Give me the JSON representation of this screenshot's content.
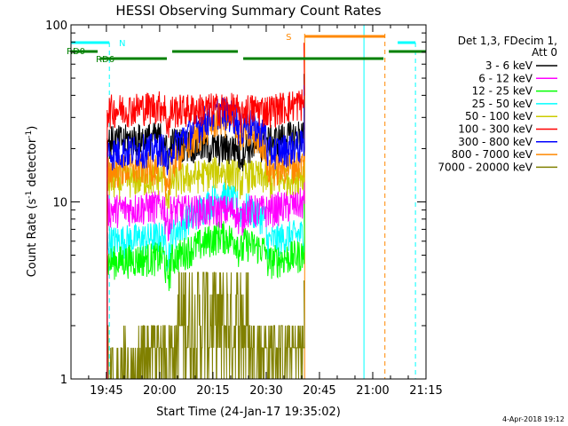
{
  "chart_data": {
    "type": "line",
    "title": "HESSI Observing Summary Count Rates",
    "xlabel": "Start Time (24-Jan-17 19:35:02)",
    "ylabel": "Count Rate (s",
    "ylabel_sup": "-1",
    "ylabel_mid": " detector",
    "ylabel_end": ")",
    "x_range": [
      "19:35:02",
      "21:15:00"
    ],
    "y_range": [
      1,
      100
    ],
    "y_scale": "log",
    "x_ticks": [
      {
        "label": "19:45",
        "min": 9.97
      },
      {
        "label": "20:00",
        "min": 24.97
      },
      {
        "label": "20:15",
        "min": 39.97
      },
      {
        "label": "20:30",
        "min": 54.97
      },
      {
        "label": "20:45",
        "min": 69.97
      },
      {
        "label": "21:00",
        "min": 84.97
      },
      {
        "label": "21:15",
        "min": 99.97
      }
    ],
    "y_ticks": [
      {
        "label": "1",
        "value": 1
      },
      {
        "label": "10",
        "value": 10
      },
      {
        "label": "100",
        "value": 100
      }
    ],
    "legend_title": [
      "Det 1,3, FDecim 1,",
      "Att 0"
    ],
    "legend_placement": "right",
    "series": [
      {
        "name": "3 - 6 keV",
        "color": "#000000",
        "start": 22,
        "peak": 20
      },
      {
        "name": "6 - 12 keV",
        "color": "#ff00ff",
        "start": 9,
        "peak": 9
      },
      {
        "name": "12 - 25 keV",
        "color": "#00ff00",
        "start": 4.6,
        "peak": 6.5
      },
      {
        "name": "25 - 50 keV",
        "color": "#00ffff",
        "start": 6,
        "peak": 11
      },
      {
        "name": "50 - 100 keV",
        "color": "#cccc00",
        "start": 13,
        "peak": 15
      },
      {
        "name": "100 - 300 keV",
        "color": "#ff0000",
        "start": 33,
        "peak": 34
      },
      {
        "name": "300 - 800 keV",
        "color": "#0000ff",
        "start": 19,
        "peak": 33
      },
      {
        "name": "800 - 7000 keV",
        "color": "#ff8800",
        "start": 15,
        "peak": 30
      },
      {
        "name": "7000 - 20000 keV",
        "color": "#808000",
        "start": 1.5,
        "peak": 3
      }
    ],
    "flags": {
      "night_label": "N",
      "saa_label": "S",
      "rd0_label": "RD0",
      "rd6_label": "RD6",
      "night_color": "#00ffff",
      "saa_color": "#ff8800",
      "rd_color": "#008000",
      "night_segments": [
        [
          0,
          10.8
        ],
        [
          92,
          97
        ]
      ],
      "saa_segments": [
        [
          65.8,
          88.4
        ]
      ],
      "rd_segments": [
        [
          0,
          7.5
        ],
        [
          8.2,
          27
        ],
        [
          28.5,
          47
        ],
        [
          48.5,
          88
        ],
        [
          89.5,
          100
        ]
      ],
      "night_vlines": [
        0,
        10.8
      ],
      "night_vlines_dashed": [
        10.8,
        97
      ],
      "night_vlines_solid": [
        0,
        82.5
      ],
      "saa_vlines_solid": [
        65.8
      ],
      "saa_vlines_dashed": [
        88.4
      ]
    },
    "footer_date": "4-Apr-2018 19:12"
  }
}
